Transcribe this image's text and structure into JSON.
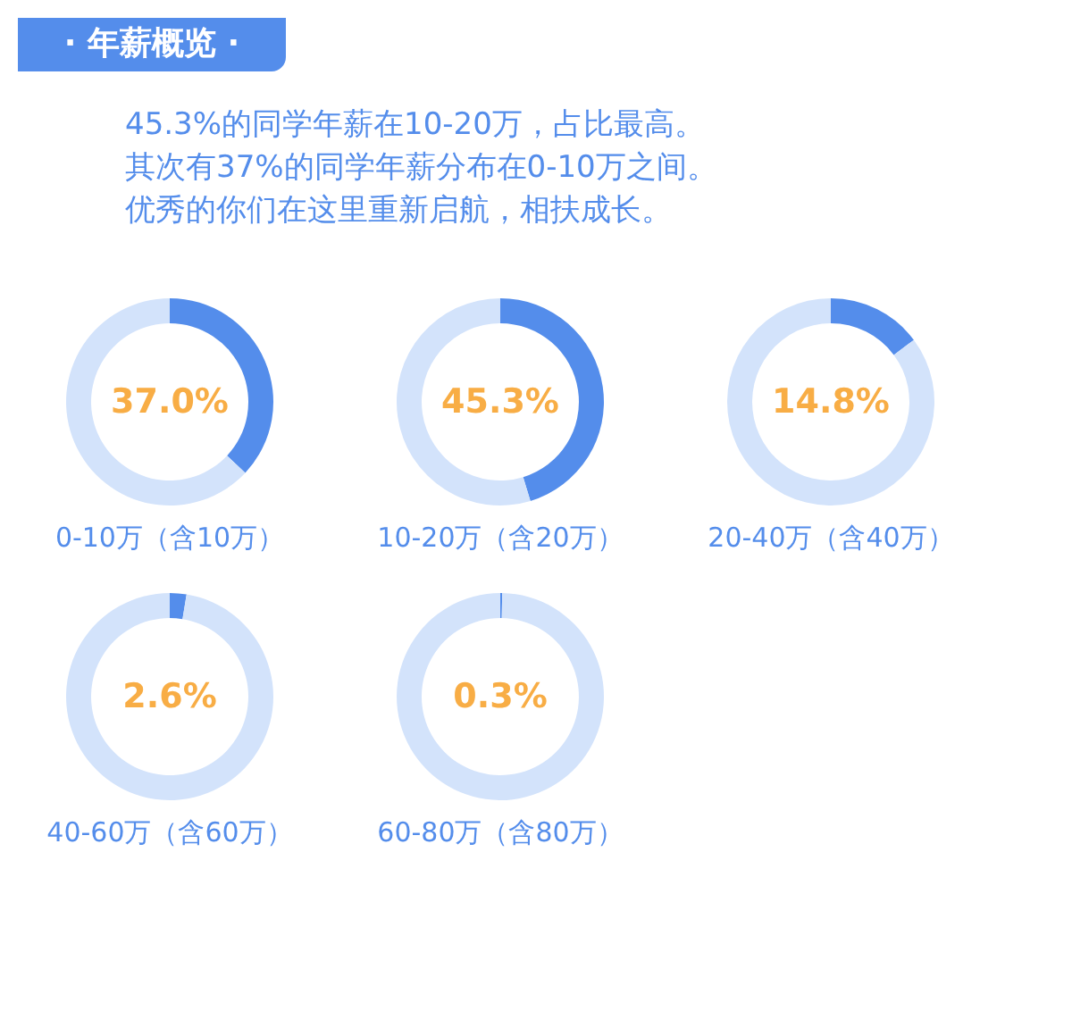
{
  "chart_data": [
    {
      "type": "other",
      "title": "· 年薪概览 ·",
      "annotations": [
        "45.3%的同学年薪在10-20万，占比最高。",
        "其次有37%的同学年薪分布在0-10万之间。",
        "优秀的你们在这里重新启航，相扶成长。"
      ]
    },
    {
      "type": "donut",
      "title": "0-10万（含10万）",
      "categories": [
        null,
        null
      ],
      "values": [
        37.0,
        63.0
      ],
      "colors": [
        "#548deb",
        "#d3e3fb"
      ],
      "annotations": [
        "37.0%"
      ]
    },
    {
      "type": "donut",
      "title": "10-20万（含20万）",
      "categories": [
        null,
        null
      ],
      "values": [
        45.3,
        54.7
      ],
      "colors": [
        "#548deb",
        "#d3e3fb"
      ],
      "annotations": [
        "45.3%"
      ]
    },
    {
      "type": "donut",
      "title": "20-40万（含40万）",
      "categories": [
        null,
        null
      ],
      "values": [
        14.8,
        85.2
      ],
      "colors": [
        "#548deb",
        "#d3e3fb"
      ],
      "annotations": [
        "14.8%"
      ]
    },
    {
      "type": "donut",
      "title": "40-60万（含60万）",
      "categories": [
        null,
        null
      ],
      "values": [
        2.6,
        97.4
      ],
      "colors": [
        "#548deb",
        "#d3e3fb"
      ],
      "annotations": [
        "2.6%"
      ]
    },
    {
      "type": "donut",
      "title": "60-80万（含80万）",
      "categories": [
        null,
        null
      ],
      "values": [
        0.3,
        99.7
      ],
      "colors": [
        "#548deb",
        "#d3e3fb"
      ],
      "annotations": [
        "0.3%"
      ]
    }
  ]
}
